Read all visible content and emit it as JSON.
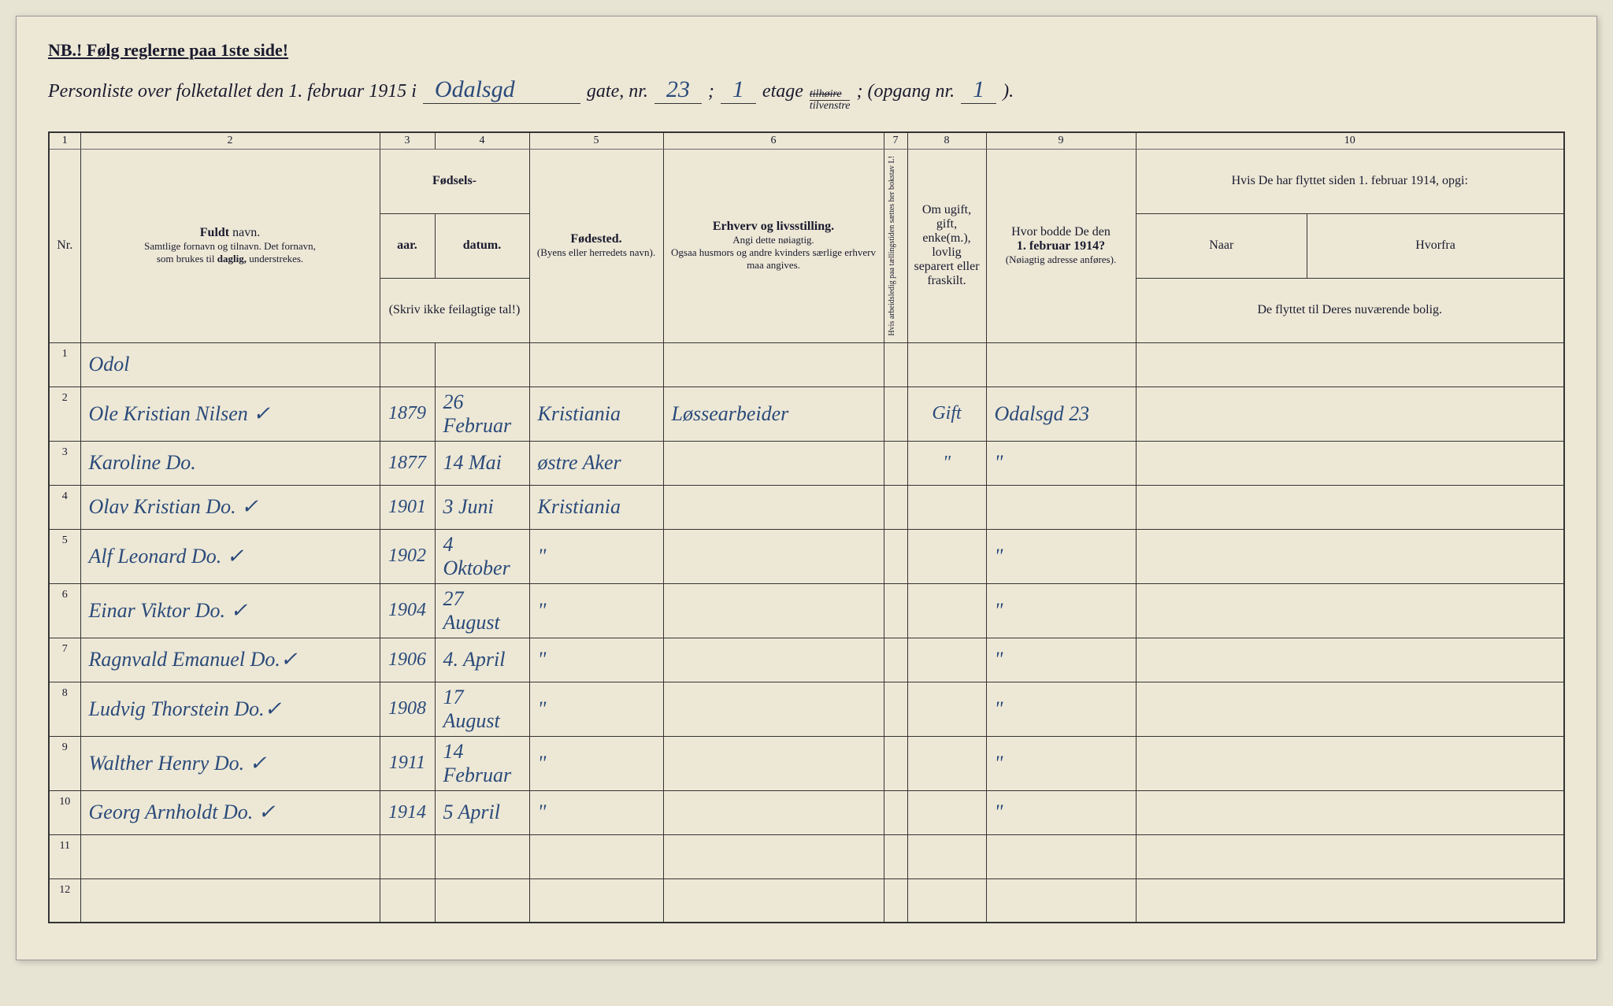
{
  "nb_text": "NB.! Følg reglerne paa 1ste side!",
  "header": {
    "prefix": "Personliste over folketallet den 1. februar 1915 i",
    "street": "Odalsgd",
    "gate_label": "gate, nr.",
    "gate_nr": "23",
    "semicolon": ";",
    "etage_nr": "1",
    "etage_label": "etage",
    "tilhoire": "tilhøire",
    "tilvenstre": "tilvenstre",
    "opgang_label": "; (opgang nr.",
    "opgang_nr": "1",
    "closing": ")."
  },
  "columns": {
    "numbers": [
      "1",
      "2",
      "3",
      "4",
      "5",
      "6",
      "7",
      "8",
      "9",
      "10"
    ],
    "nr": "Nr.",
    "name_bold": "Fuldt",
    "name_rest": " navn.",
    "name_sub1": "Samtlige fornavn og tilnavn.   Det fornavn,",
    "name_sub2": "som brukes til ",
    "name_sub2_bold": "daglig,",
    "name_sub3": " understrekes.",
    "fodsels": "Fødsels-",
    "aar": "aar.",
    "datum": "datum.",
    "fodsels_sub": "(Skriv ikke feilagtige tal!)",
    "fodested": "Fødested.",
    "fodested_sub": "(Byens eller herredets navn).",
    "erhverv": "Erhverv og livsstilling.",
    "erhverv_sub1": "Angi dette nøiagtig.",
    "erhverv_sub2": "Ogsaa husmors og andre kvinders særlige erhverv maa angives.",
    "col7": "Hvis arbeidsledig paa tællingstiden sættes her bokstav L!",
    "col8": "Om ugift, gift, enke(m.), lovlig separert eller fraskilt.",
    "col9_line1": "Hvor bodde De den",
    "col9_line2": "1. februar 1914?",
    "col9_sub": "(Nøiagtig adresse anføres).",
    "col10_line1": "Hvis De har flyttet siden 1. februar 1914, opgi:",
    "col10_naar": "Naar",
    "col10_hvorfra": "Hvorfra",
    "col10_sub": "De flyttet til Deres nuværende bolig."
  },
  "rows": [
    {
      "nr": "1",
      "name": "Odol",
      "year": "",
      "date": "",
      "place": "",
      "occ": "",
      "c7": "",
      "c8": "",
      "c9": "",
      "c10": ""
    },
    {
      "nr": "2",
      "name": "Ole Kristian Nilsen ✓",
      "year": "1879",
      "date": "26 Februar",
      "place": "Kristiania",
      "occ": "Løssearbeider",
      "c7": "",
      "c8": "Gift",
      "c9": "Odalsgd 23",
      "c10": ""
    },
    {
      "nr": "3",
      "name": "Karoline        Do.",
      "year": "1877",
      "date": "14 Mai",
      "place": "østre Aker",
      "occ": "",
      "c7": "",
      "c8": "\"",
      "c9": "\"",
      "c10": ""
    },
    {
      "nr": "4",
      "name": "Olav Kristian   Do. ✓",
      "year": "1901",
      "date": "3 Juni",
      "place": "Kristiania",
      "occ": "",
      "c7": "",
      "c8": "",
      "c9": "",
      "c10": ""
    },
    {
      "nr": "5",
      "name": "Alf Leonard    Do. ✓",
      "year": "1902",
      "date": "4 Oktober",
      "place": "\"",
      "occ": "",
      "c7": "",
      "c8": "",
      "c9": "\"",
      "c10": ""
    },
    {
      "nr": "6",
      "name": "Einar Viktor   Do. ✓",
      "year": "1904",
      "date": "27 August",
      "place": "\"",
      "occ": "",
      "c7": "",
      "c8": "",
      "c9": "\"",
      "c10": ""
    },
    {
      "nr": "7",
      "name": "Ragnvald Emanuel Do.✓",
      "year": "1906",
      "date": "4. April",
      "place": "\"",
      "occ": "",
      "c7": "",
      "c8": "",
      "c9": "\"",
      "c10": ""
    },
    {
      "nr": "8",
      "name": "Ludvig Thorstein Do.✓",
      "year": "1908",
      "date": "17 August",
      "place": "\"",
      "occ": "",
      "c7": "",
      "c8": "",
      "c9": "\"",
      "c10": ""
    },
    {
      "nr": "9",
      "name": "Walther Henry  Do. ✓",
      "year": "1911",
      "date": "14 Februar",
      "place": "\"",
      "occ": "",
      "c7": "",
      "c8": "",
      "c9": "\"",
      "c10": ""
    },
    {
      "nr": "10",
      "name": "Georg Arnholdt  Do. ✓",
      "year": "1914",
      "date": "5 April",
      "place": "\"",
      "occ": "",
      "c7": "",
      "c8": "",
      "c9": "\"",
      "c10": ""
    },
    {
      "nr": "11",
      "name": "",
      "year": "",
      "date": "",
      "place": "",
      "occ": "",
      "c7": "",
      "c8": "",
      "c9": "",
      "c10": ""
    },
    {
      "nr": "12",
      "name": "",
      "year": "",
      "date": "",
      "place": "",
      "occ": "",
      "c7": "",
      "c8": "",
      "c9": "",
      "c10": ""
    }
  ],
  "styling": {
    "paper_color": "#ede8d6",
    "ink_color": "#1a1a2e",
    "handwriting_color": "#2a4a7a",
    "border_color": "#333333"
  }
}
